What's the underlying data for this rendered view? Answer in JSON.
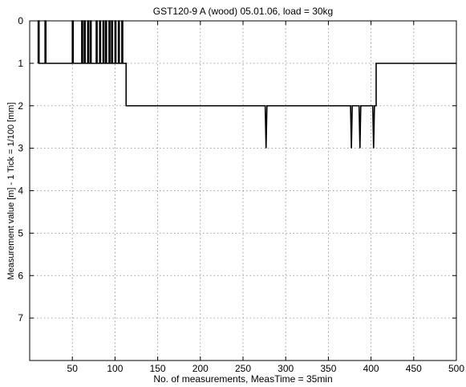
{
  "chart_data": {
    "type": "line",
    "title": "GST120-9 A (wood) 05.01.06, load = 30kg",
    "xlabel": "No. of measurements, MeasTime = 35min",
    "ylabel": "Measurement value [m] - 1 Tick = 1/100 [mm]",
    "xlim": [
      0,
      500
    ],
    "ylim": [
      0,
      8
    ],
    "y_reversed": true,
    "grid": true,
    "xticks": [
      50,
      100,
      150,
      200,
      250,
      300,
      350,
      400,
      450,
      500
    ],
    "yticks": [
      0,
      1,
      2,
      3,
      4,
      5,
      6,
      7
    ],
    "line_color": "#000000",
    "series": [
      {
        "x": [
          10,
          10,
          11,
          11,
          18,
          18,
          19,
          19,
          50,
          50,
          51,
          51,
          61,
          61,
          62,
          62,
          64,
          64,
          65,
          65,
          68,
          68,
          69,
          69,
          71,
          71,
          72,
          72,
          78,
          78,
          79,
          79,
          82,
          82,
          83,
          83,
          86,
          86,
          87,
          87,
          89,
          89,
          90,
          90,
          93,
          93,
          94,
          94,
          96,
          96,
          97,
          97,
          100,
          100,
          101,
          101,
          104,
          104,
          105,
          105,
          108,
          108,
          109,
          109,
          110,
          113,
          113,
          276,
          277,
          278,
          278,
          376,
          377,
          378,
          378,
          386,
          387,
          388,
          388,
          402,
          403,
          404,
          404,
          406,
          406,
          500
        ],
        "y": [
          1,
          0,
          0,
          1,
          1,
          0,
          0,
          1,
          1,
          0,
          0,
          1,
          1,
          0,
          0,
          1,
          1,
          0,
          0,
          1,
          1,
          0,
          0,
          1,
          1,
          0,
          0,
          1,
          1,
          0,
          0,
          1,
          1,
          0,
          0,
          1,
          1,
          0,
          0,
          1,
          1,
          0,
          0,
          1,
          1,
          0,
          0,
          1,
          1,
          0,
          0,
          1,
          1,
          0,
          0,
          1,
          1,
          0,
          0,
          1,
          1,
          0,
          0,
          1,
          1,
          1,
          2,
          2,
          3,
          2,
          2,
          2,
          3,
          2,
          2,
          2,
          3,
          2,
          2,
          2,
          3,
          2,
          2,
          2,
          1,
          1
        ]
      }
    ]
  }
}
